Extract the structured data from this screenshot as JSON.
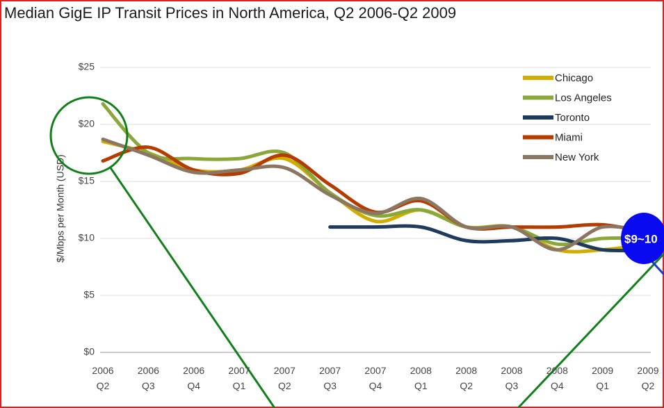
{
  "chart_data": {
    "type": "line",
    "title": "Median GigE IP Transit Prices in North America, Q2 2006-Q2 2009",
    "y_label": "$/Mbps per Month (USD)",
    "categories": [
      "2006 Q2",
      "2006 Q3",
      "2006 Q4",
      "2007 Q1",
      "2007 Q2",
      "2007 Q3",
      "2007 Q4",
      "2008 Q1",
      "2008 Q2",
      "2008 Q3",
      "2008 Q4",
      "2009 Q1",
      "2009 Q2"
    ],
    "series": [
      {
        "name": "Chicago",
        "color": "#d2ad00",
        "values": [
          18.5,
          17.5,
          16,
          16,
          17,
          14,
          11.5,
          12.5,
          11,
          11,
          9,
          9,
          9.5
        ]
      },
      {
        "name": "Los Angeles",
        "color": "#8aa83a",
        "values": [
          21.8,
          17.5,
          17,
          17,
          17.5,
          14,
          12,
          12.5,
          11,
          11,
          9.5,
          10,
          10
        ]
      },
      {
        "name": "Toronto",
        "color": "#1e3a5c",
        "values": [
          null,
          null,
          null,
          null,
          null,
          11,
          11,
          11,
          9.8,
          9.8,
          10,
          9,
          9
        ]
      },
      {
        "name": "Miami",
        "color": "#b53c00",
        "values": [
          16.8,
          18,
          16,
          15.7,
          17.3,
          14.7,
          12.3,
          13.3,
          11,
          11,
          11,
          11.2,
          10.5
        ]
      },
      {
        "name": "New York",
        "color": "#8b7661",
        "values": [
          18.7,
          17.3,
          15.8,
          16,
          16.2,
          13.8,
          12.2,
          13.5,
          11,
          11,
          9,
          11,
          10.5
        ]
      }
    ],
    "ylim": [
      0,
      25
    ],
    "yticks": [
      {
        "value": 0,
        "label": "$0"
      },
      {
        "value": 5,
        "label": "$5"
      },
      {
        "value": 10,
        "label": "$10"
      },
      {
        "value": 15,
        "label": "$15"
      },
      {
        "value": 20,
        "label": "$20"
      },
      {
        "value": 25,
        "label": "$25"
      }
    ],
    "grid": true,
    "legend": "upper right",
    "annotation": "$9~10"
  }
}
